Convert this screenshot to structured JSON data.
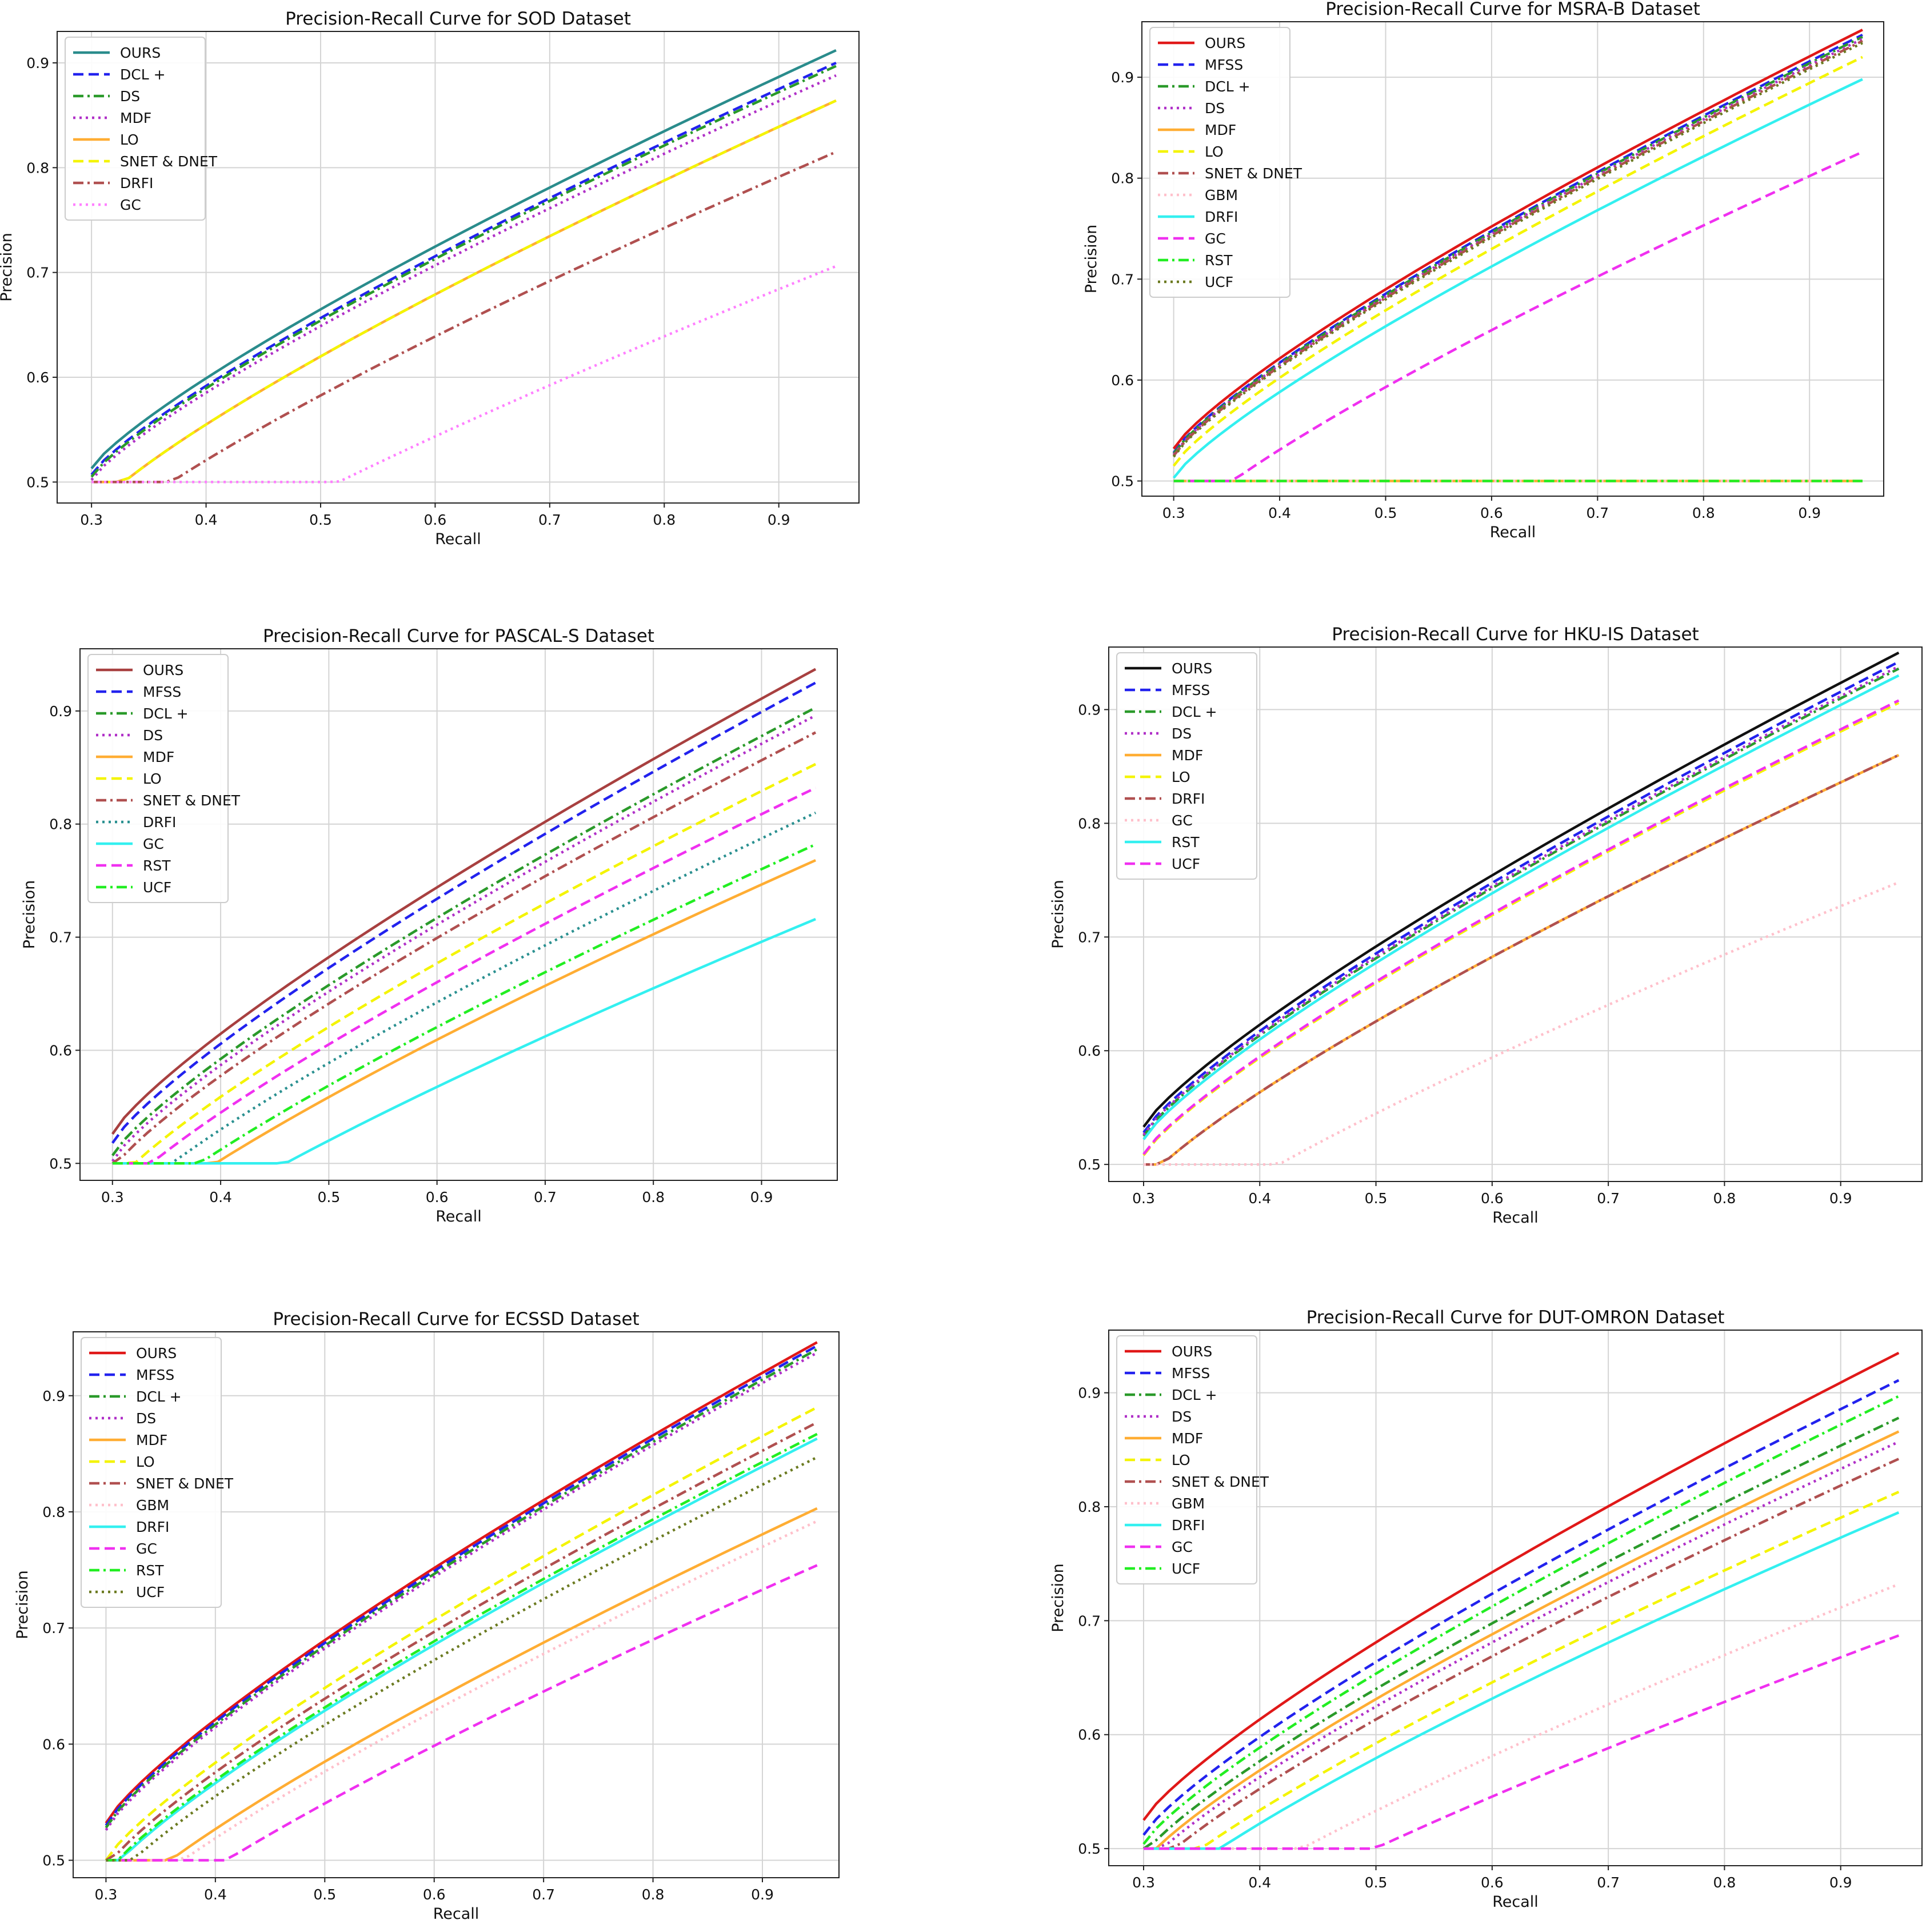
{
  "figure_title": "",
  "chart_data": [
    {
      "type": "line",
      "title": "Precision-Recall Curve for SOD Dataset",
      "xlabel": "Recall",
      "ylabel": "Precision",
      "xlim": [
        0.27,
        0.97
      ],
      "ylim": [
        0.48,
        0.93
      ],
      "xticks": [
        0.3,
        0.4,
        0.5,
        0.6,
        0.7,
        0.8,
        0.9
      ],
      "yticks": [
        0.5,
        0.6,
        0.7,
        0.8,
        0.9
      ],
      "grid": true,
      "legend_position": "top-left",
      "series": [
        {
          "name": "OURS",
          "color": "#2a8c8c",
          "dash": "solid",
          "p0": 0.513,
          "p1": 0.912
        },
        {
          "name": "DCL +",
          "color": "#2222ee",
          "dash": "dashed",
          "p0": 0.507,
          "p1": 0.9
        },
        {
          "name": "DS",
          "color": "#2a9a2a",
          "dash": "dashdot",
          "p0": 0.505,
          "p1": 0.897
        },
        {
          "name": "MDF",
          "color": "#b030c8",
          "dash": "dotted",
          "p0": 0.502,
          "p1": 0.888
        },
        {
          "name": "LO",
          "color": "#ffad33",
          "dash": "solid",
          "p0": 0.47,
          "p1": 0.864
        },
        {
          "name": "SNET & DNET",
          "color": "#f4f400",
          "dash": "dashed",
          "p0": 0.47,
          "p1": 0.864
        },
        {
          "name": "DRFI",
          "color": "#b05050",
          "dash": "dashdot",
          "p0": 0.44,
          "p1": 0.815
        },
        {
          "name": "GC",
          "color": "#ff80ff",
          "dash": "dotted",
          "p0": 0.36,
          "p1": 0.706
        }
      ]
    },
    {
      "type": "line",
      "title": "Precision-Recall Curve for MSRA-B Dataset",
      "xlabel": "Recall",
      "ylabel": "Precision",
      "xlim": [
        0.27,
        0.97
      ],
      "ylim": [
        0.485,
        0.955
      ],
      "xticks": [
        0.3,
        0.4,
        0.5,
        0.6,
        0.7,
        0.8,
        0.9
      ],
      "yticks": [
        0.5,
        0.6,
        0.7,
        0.8,
        0.9
      ],
      "grid": true,
      "legend_position": "top-left",
      "series": [
        {
          "name": "OURS",
          "color": "#e01818",
          "dash": "solid",
          "p0": 0.532,
          "p1": 0.947
        },
        {
          "name": "MFSS",
          "color": "#2222ee",
          "dash": "dashed",
          "p0": 0.528,
          "p1": 0.942
        },
        {
          "name": "DCL +",
          "color": "#2a9a2a",
          "dash": "dashdot",
          "p0": 0.527,
          "p1": 0.94
        },
        {
          "name": "DS",
          "color": "#b030c8",
          "dash": "dotted",
          "p0": 0.526,
          "p1": 0.938
        },
        {
          "name": "MDF",
          "color": "#ffad33",
          "dash": "solid",
          "p0": 0.46,
          "p1": 0.5
        },
        {
          "name": "LO",
          "color": "#f4f400",
          "dash": "dashed",
          "p0": 0.515,
          "p1": 0.92
        },
        {
          "name": "SNET & DNET",
          "color": "#b05050",
          "dash": "dashdot",
          "p0": 0.525,
          "p1": 0.936
        },
        {
          "name": "GBM",
          "color": "#ffc0cb",
          "dash": "dotted",
          "p0": 0.46,
          "p1": 0.5
        },
        {
          "name": "DRFI",
          "color": "#33f0f0",
          "dash": "solid",
          "p0": 0.503,
          "p1": 0.898
        },
        {
          "name": "GC",
          "color": "#f030f0",
          "dash": "dashed",
          "p0": 0.45,
          "p1": 0.826
        },
        {
          "name": "RST",
          "color": "#22ee22",
          "dash": "dashdot",
          "p0": 0.46,
          "p1": 0.5
        },
        {
          "name": "UCF",
          "color": "#6b7a20",
          "dash": "dotted",
          "p0": 0.524,
          "p1": 0.934
        }
      ]
    },
    {
      "type": "line",
      "title": "Precision-Recall Curve for PASCAL-S Dataset",
      "xlabel": "Recall",
      "ylabel": "Precision",
      "xlim": [
        0.27,
        0.97
      ],
      "ylim": [
        0.485,
        0.955
      ],
      "xticks": [
        0.3,
        0.4,
        0.5,
        0.6,
        0.7,
        0.8,
        0.9
      ],
      "yticks": [
        0.5,
        0.6,
        0.7,
        0.8,
        0.9
      ],
      "grid": true,
      "legend_position": "top-left",
      "series": [
        {
          "name": "OURS",
          "color": "#a84040",
          "dash": "solid",
          "p0": 0.526,
          "p1": 0.937
        },
        {
          "name": "MFSS",
          "color": "#2222ee",
          "dash": "dashed",
          "p0": 0.518,
          "p1": 0.925
        },
        {
          "name": "DCL +",
          "color": "#2a9a2a",
          "dash": "dashdot",
          "p0": 0.507,
          "p1": 0.903
        },
        {
          "name": "DS",
          "color": "#b030c8",
          "dash": "dotted",
          "p0": 0.502,
          "p1": 0.896
        },
        {
          "name": "MDF",
          "color": "#ffad33",
          "dash": "solid",
          "p0": 0.43,
          "p1": 0.768
        },
        {
          "name": "LO",
          "color": "#f4f400",
          "dash": "dashed",
          "p0": 0.478,
          "p1": 0.853
        },
        {
          "name": "SNET & DNET",
          "color": "#b05050",
          "dash": "dashdot",
          "p0": 0.494,
          "p1": 0.881
        },
        {
          "name": "DRFI",
          "color": "#2a9090",
          "dash": "dotted",
          "p0": 0.453,
          "p1": 0.81
        },
        {
          "name": "GC",
          "color": "#33f0f0",
          "dash": "solid",
          "p0": 0.4,
          "p1": 0.716
        },
        {
          "name": "RST",
          "color": "#f030f0",
          "dash": "dashed",
          "p0": 0.466,
          "p1": 0.832
        },
        {
          "name": "UCF",
          "color": "#22ee22",
          "dash": "dashdot",
          "p0": 0.438,
          "p1": 0.782
        }
      ]
    },
    {
      "type": "line",
      "title": "Precision-Recall Curve for HKU-IS Dataset",
      "xlabel": "Recall",
      "ylabel": "Precision",
      "xlim": [
        0.27,
        0.97
      ],
      "ylim": [
        0.485,
        0.955
      ],
      "xticks": [
        0.3,
        0.4,
        0.5,
        0.6,
        0.7,
        0.8,
        0.9
      ],
      "yticks": [
        0.5,
        0.6,
        0.7,
        0.8,
        0.9
      ],
      "grid": true,
      "legend_position": "top-left",
      "series": [
        {
          "name": "OURS",
          "color": "#111111",
          "dash": "solid",
          "p0": 0.533,
          "p1": 0.95
        },
        {
          "name": "MFSS",
          "color": "#2222ee",
          "dash": "dashed",
          "p0": 0.528,
          "p1": 0.942
        },
        {
          "name": "DCL +",
          "color": "#2a9a2a",
          "dash": "dashdot",
          "p0": 0.525,
          "p1": 0.936
        },
        {
          "name": "DS",
          "color": "#b030c8",
          "dash": "dotted",
          "p0": 0.526,
          "p1": 0.938
        },
        {
          "name": "MDF",
          "color": "#ffad33",
          "dash": "solid",
          "p0": 0.482,
          "p1": 0.86
        },
        {
          "name": "LO",
          "color": "#f4f400",
          "dash": "dashed",
          "p0": 0.508,
          "p1": 0.906
        },
        {
          "name": "DRFI",
          "color": "#b05050",
          "dash": "dashdot",
          "p0": 0.482,
          "p1": 0.86
        },
        {
          "name": "GC",
          "color": "#ffc0cb",
          "dash": "dotted",
          "p0": 0.42,
          "p1": 0.748
        },
        {
          "name": "RST",
          "color": "#33f0f0",
          "dash": "solid",
          "p0": 0.522,
          "p1": 0.93
        },
        {
          "name": "UCF",
          "color": "#f030f0",
          "dash": "dashed",
          "p0": 0.509,
          "p1": 0.908
        }
      ]
    },
    {
      "type": "line",
      "title": "Precision-Recall Curve for ECSSD Dataset",
      "xlabel": "Recall",
      "ylabel": "Precision",
      "xlim": [
        0.27,
        0.97
      ],
      "ylim": [
        0.485,
        0.955
      ],
      "xticks": [
        0.3,
        0.4,
        0.5,
        0.6,
        0.7,
        0.8,
        0.9
      ],
      "yticks": [
        0.5,
        0.6,
        0.7,
        0.8,
        0.9
      ],
      "grid": true,
      "legend_position": "top-left",
      "series": [
        {
          "name": "OURS",
          "color": "#e01818",
          "dash": "solid",
          "p0": 0.532,
          "p1": 0.946
        },
        {
          "name": "MFSS",
          "color": "#2222ee",
          "dash": "dashed",
          "p0": 0.53,
          "p1": 0.943
        },
        {
          "name": "DCL +",
          "color": "#2a9a2a",
          "dash": "dashdot",
          "p0": 0.528,
          "p1": 0.94
        },
        {
          "name": "DS",
          "color": "#b030c8",
          "dash": "dotted",
          "p0": 0.526,
          "p1": 0.937
        },
        {
          "name": "MDF",
          "color": "#ffad33",
          "dash": "solid",
          "p0": 0.451,
          "p1": 0.803
        },
        {
          "name": "LO",
          "color": "#f4f400",
          "dash": "dashed",
          "p0": 0.5,
          "p1": 0.89
        },
        {
          "name": "SNET & DNET",
          "color": "#b05050",
          "dash": "dashdot",
          "p0": 0.493,
          "p1": 0.877
        },
        {
          "name": "GBM",
          "color": "#ffc0cb",
          "dash": "dotted",
          "p0": 0.444,
          "p1": 0.792
        },
        {
          "name": "DRFI",
          "color": "#33f0f0",
          "dash": "solid",
          "p0": 0.485,
          "p1": 0.863
        },
        {
          "name": "GC",
          "color": "#f030f0",
          "dash": "dashed",
          "p0": 0.423,
          "p1": 0.754
        },
        {
          "name": "RST",
          "color": "#22ee22",
          "dash": "dashdot",
          "p0": 0.487,
          "p1": 0.867
        },
        {
          "name": "UCF",
          "color": "#6b7a20",
          "dash": "dotted",
          "p0": 0.475,
          "p1": 0.847
        }
      ]
    },
    {
      "type": "line",
      "title": "Precision-Recall Curve for DUT-OMRON Dataset",
      "xlabel": "Recall",
      "ylabel": "Precision",
      "xlim": [
        0.27,
        0.97
      ],
      "ylim": [
        0.485,
        0.955
      ],
      "xticks": [
        0.3,
        0.4,
        0.5,
        0.6,
        0.7,
        0.8,
        0.9
      ],
      "yticks": [
        0.5,
        0.6,
        0.7,
        0.8,
        0.9
      ],
      "grid": true,
      "legend_position": "top-left",
      "series": [
        {
          "name": "OURS",
          "color": "#e01818",
          "dash": "solid",
          "p0": 0.525,
          "p1": 0.935
        },
        {
          "name": "MFSS",
          "color": "#2222ee",
          "dash": "dashed",
          "p0": 0.512,
          "p1": 0.911
        },
        {
          "name": "DCL +",
          "color": "#2a9a2a",
          "dash": "dashdot",
          "p0": 0.494,
          "p1": 0.878
        },
        {
          "name": "DS",
          "color": "#b030c8",
          "dash": "dotted",
          "p0": 0.482,
          "p1": 0.857
        },
        {
          "name": "MDF",
          "color": "#ffad33",
          "dash": "solid",
          "p0": 0.487,
          "p1": 0.866
        },
        {
          "name": "LO",
          "color": "#f4f400",
          "dash": "dashed",
          "p0": 0.457,
          "p1": 0.813
        },
        {
          "name": "SNET & DNET",
          "color": "#b05050",
          "dash": "dashdot",
          "p0": 0.473,
          "p1": 0.842
        },
        {
          "name": "GBM",
          "color": "#ffc0cb",
          "dash": "dotted",
          "p0": 0.411,
          "p1": 0.732
        },
        {
          "name": "DRFI",
          "color": "#33f0f0",
          "dash": "solid",
          "p0": 0.447,
          "p1": 0.795
        },
        {
          "name": "GC",
          "color": "#f030f0",
          "dash": "dashed",
          "p0": 0.386,
          "p1": 0.687
        },
        {
          "name": "UCF",
          "color": "#22ee22",
          "dash": "dashdot",
          "p0": 0.504,
          "p1": 0.897
        }
      ]
    }
  ]
}
